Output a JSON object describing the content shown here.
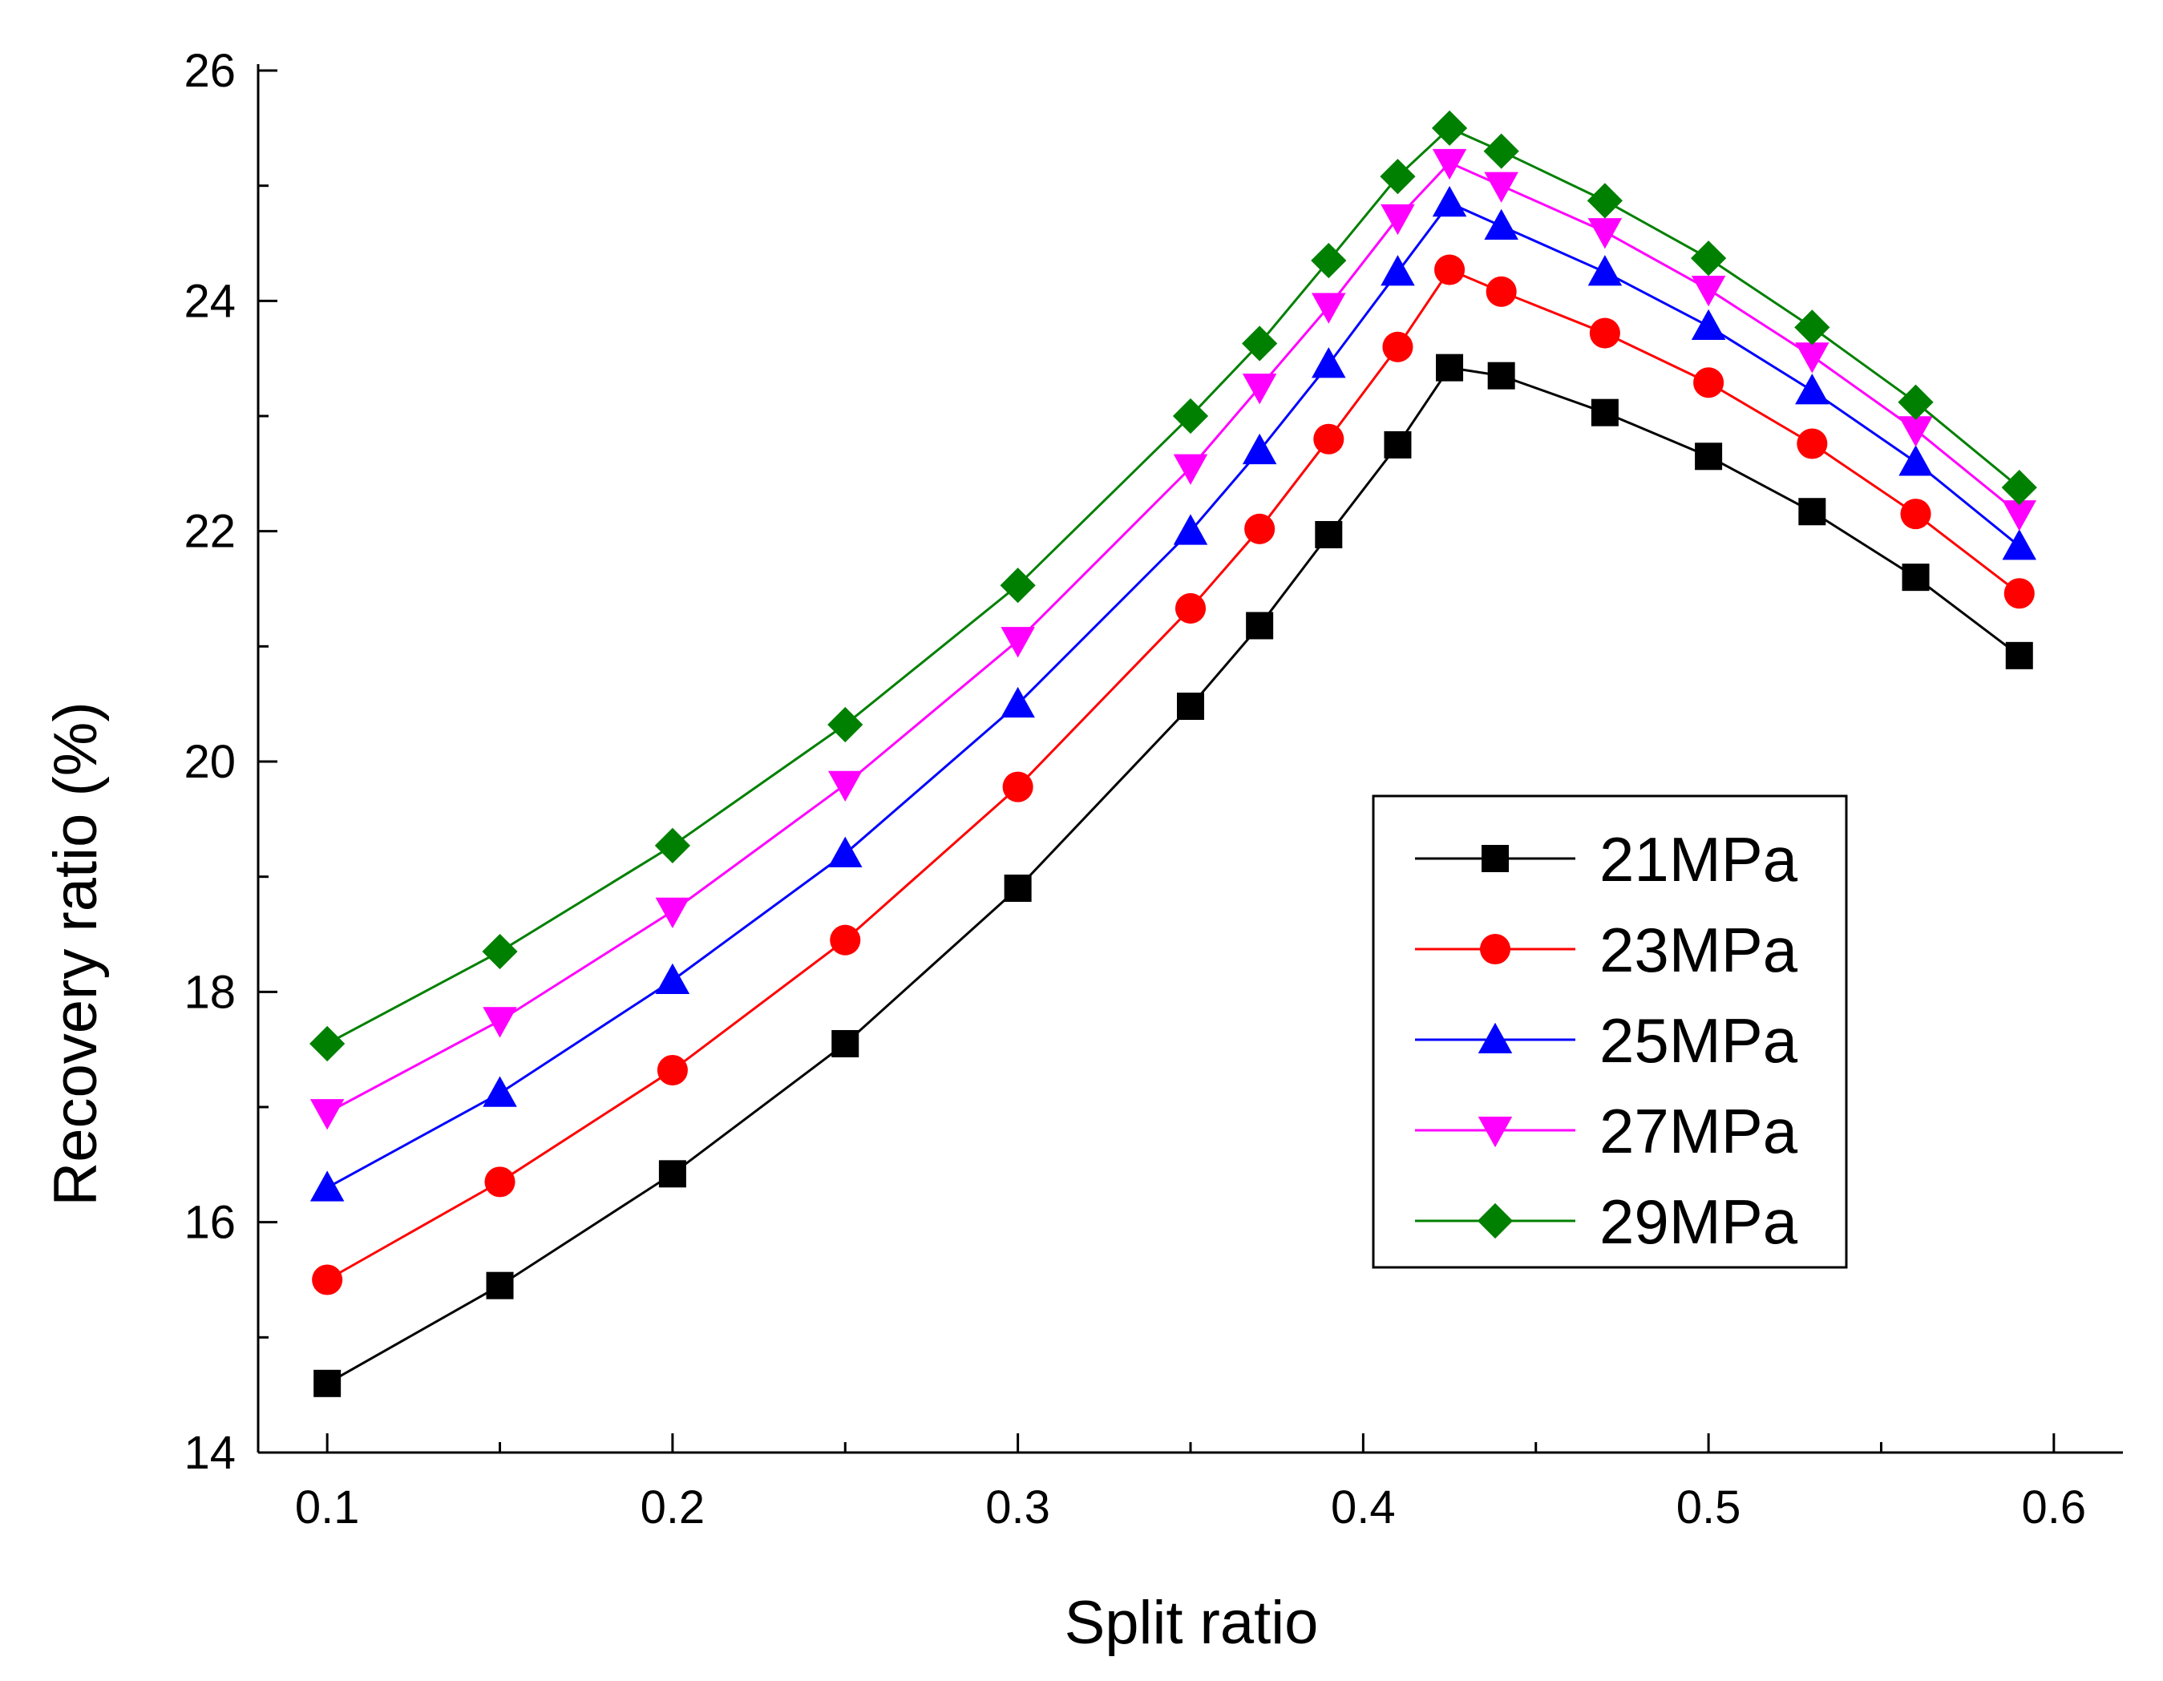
{
  "chart_data": {
    "type": "line",
    "title": "",
    "xlabel": "Split ratio",
    "ylabel": "Recovery ratio (%)",
    "xlim": [
      0.08,
      0.62
    ],
    "ylim": [
      14,
      26
    ],
    "x_ticks": [
      0.1,
      0.2,
      0.3,
      0.4,
      0.5,
      0.6
    ],
    "x_tick_labels": [
      "0.1",
      "0.2",
      "0.3",
      "0.4",
      "0.5",
      "0.6"
    ],
    "x_minor_ticks": [
      0.15,
      0.25,
      0.35,
      0.45,
      0.55
    ],
    "y_ticks": [
      14,
      16,
      18,
      20,
      22,
      24,
      26
    ],
    "y_tick_labels": [
      "14",
      "16",
      "18",
      "20",
      "22",
      "24",
      "26"
    ],
    "y_minor_ticks": [
      15,
      17,
      19,
      21,
      23,
      25
    ],
    "grid": false,
    "legend_position": "center-right",
    "x": [
      0.1,
      0.15,
      0.2,
      0.25,
      0.3,
      0.35,
      0.37,
      0.39,
      0.41,
      0.425,
      0.44,
      0.47,
      0.5,
      0.53,
      0.56,
      0.59
    ],
    "series": [
      {
        "name": "21MPa",
        "color": "#000000",
        "marker": "square",
        "values": [
          14.6,
          15.45,
          16.42,
          17.55,
          18.9,
          20.48,
          21.18,
          21.97,
          22.75,
          23.42,
          23.35,
          23.03,
          22.65,
          22.17,
          21.6,
          20.92
        ]
      },
      {
        "name": "23MPa",
        "color": "#ff0000",
        "marker": "circle",
        "values": [
          15.5,
          16.35,
          17.32,
          18.45,
          19.78,
          21.33,
          22.02,
          22.8,
          23.6,
          24.27,
          24.08,
          23.72,
          23.29,
          22.76,
          22.15,
          21.46
        ]
      },
      {
        "name": "25MPa",
        "color": "#0000ff",
        "marker": "triangle-up",
        "values": [
          16.3,
          17.12,
          18.1,
          19.2,
          20.5,
          22.0,
          22.7,
          23.45,
          24.25,
          24.85,
          24.65,
          24.25,
          23.78,
          23.22,
          22.6,
          21.87
        ]
      },
      {
        "name": "27MPa",
        "color": "#ff00ff",
        "marker": "triangle-down",
        "values": [
          16.95,
          17.75,
          18.7,
          19.8,
          21.05,
          22.55,
          23.25,
          23.95,
          24.72,
          25.2,
          25.0,
          24.6,
          24.1,
          23.52,
          22.88,
          22.15
        ]
      },
      {
        "name": "29MPa",
        "color": "#008000",
        "marker": "diamond",
        "values": [
          17.55,
          18.35,
          19.27,
          20.32,
          21.53,
          23.0,
          23.63,
          24.35,
          25.08,
          25.5,
          25.3,
          24.87,
          24.37,
          23.77,
          23.12,
          22.38
        ]
      }
    ]
  }
}
